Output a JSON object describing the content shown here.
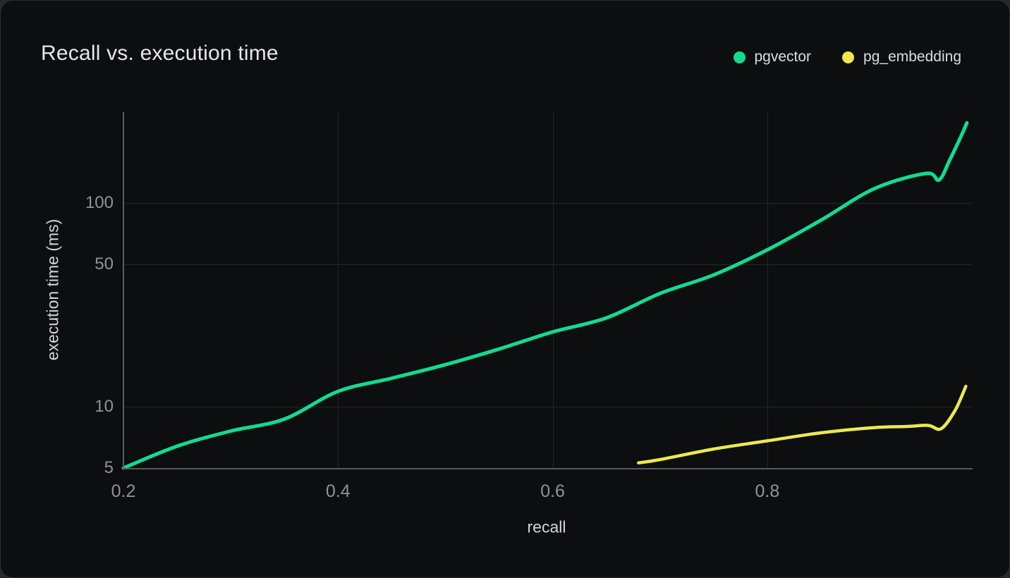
{
  "header": {
    "title": "Recall vs. execution time"
  },
  "colors": {
    "page_background": "#26282d",
    "card_background": "#0d0e10",
    "grid": "#242629",
    "axis": "#565b63",
    "tick_text": "#8f9399",
    "axis_title_text": "#d4d6d9",
    "title_text": "#e6e7e9",
    "pgvector_green": "#11dc90",
    "pg_embedding_yellow": "#ece94f"
  },
  "chart_data": {
    "type": "line",
    "title": "Recall vs. execution time",
    "xlabel": "recall",
    "ylabel": "execution time (ms)",
    "xlim": [
      0.2,
      0.99
    ],
    "ylim": [
      5,
      280
    ],
    "yscale": "log",
    "x_ticks": [
      0.2,
      0.4,
      0.6,
      0.8
    ],
    "y_ticks": [
      5,
      10,
      50,
      100
    ],
    "grid": true,
    "legend_position": "top-right",
    "series": [
      {
        "name": "pgvector",
        "color": "#11dc90",
        "stroke_width": 5,
        "points": [
          [
            0.2,
            5.0
          ],
          [
            0.25,
            6.4
          ],
          [
            0.3,
            7.6
          ],
          [
            0.35,
            8.7
          ],
          [
            0.4,
            11.9
          ],
          [
            0.45,
            13.8
          ],
          [
            0.5,
            16.1
          ],
          [
            0.55,
            19.2
          ],
          [
            0.6,
            23.3
          ],
          [
            0.65,
            27.3
          ],
          [
            0.7,
            36.0
          ],
          [
            0.75,
            44.4
          ],
          [
            0.8,
            59.0
          ],
          [
            0.85,
            82.5
          ],
          [
            0.9,
            118
          ],
          [
            0.948,
            140
          ],
          [
            0.96,
            130
          ],
          [
            0.97,
            163
          ],
          [
            0.98,
            210
          ],
          [
            0.986,
            248
          ]
        ]
      },
      {
        "name": "pg_embedding",
        "color": "#ece94f",
        "stroke_width": 4.5,
        "points": [
          [
            0.68,
            5.3
          ],
          [
            0.7,
            5.5
          ],
          [
            0.75,
            6.2
          ],
          [
            0.8,
            6.8
          ],
          [
            0.85,
            7.45
          ],
          [
            0.9,
            7.9
          ],
          [
            0.93,
            8.0
          ],
          [
            0.95,
            8.1
          ],
          [
            0.962,
            7.8
          ],
          [
            0.975,
            9.6
          ],
          [
            0.985,
            12.6
          ]
        ]
      }
    ]
  }
}
